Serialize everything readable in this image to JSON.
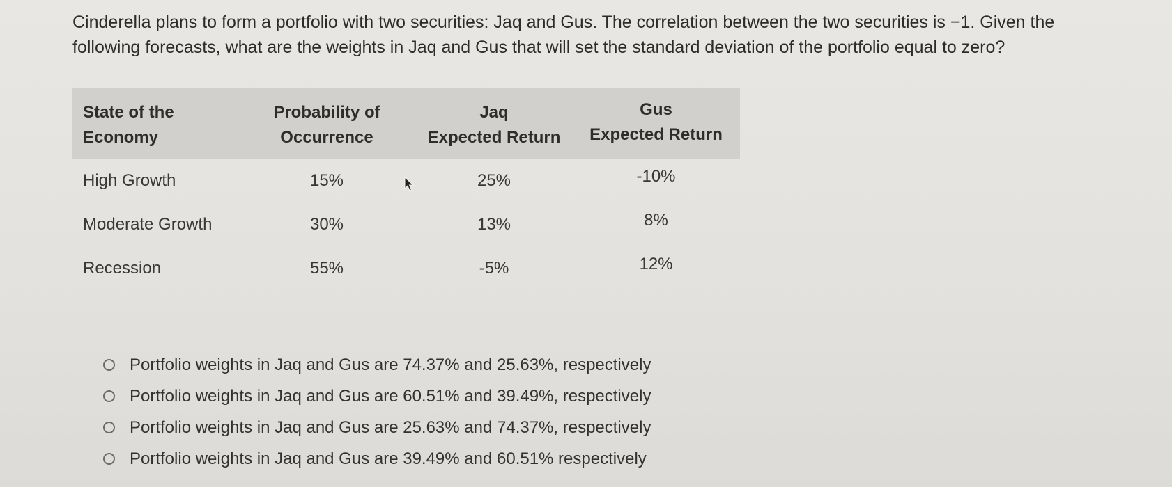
{
  "question": "Cinderella plans to form a portfolio with two securities: Jaq and Gus. The correlation between the two securities is −1. Given the following forecasts, what are the weights in Jaq and Gus that will set the standard deviation of the portfolio equal to zero?",
  "table": {
    "headers": {
      "state": [
        "State of the",
        "Economy"
      ],
      "probability": [
        "Probability of",
        "Occurrence"
      ],
      "jaq": [
        "Jaq",
        "Expected Return"
      ],
      "gus": [
        "Gus",
        "Expected Return"
      ]
    },
    "rows": [
      {
        "state": "High Growth",
        "probability": "15%",
        "jaq": "25%",
        "gus": "-10%"
      },
      {
        "state": "Moderate Growth",
        "probability": "30%",
        "jaq": "13%",
        "gus": "8%"
      },
      {
        "state": "Recession",
        "probability": "55%",
        "jaq": "-5%",
        "gus": "12%"
      }
    ]
  },
  "options": [
    "Portfolio weights in Jaq and Gus are 74.37% and 25.63%, respectively",
    "Portfolio weights in Jaq and Gus are 60.51% and 39.49%, respectively",
    "Portfolio weights in Jaq and Gus are 25.63% and 74.37%, respectively",
    "Portfolio weights in Jaq and Gus are 39.49% and 60.51% respectively"
  ],
  "icons": {
    "cursor": "mouse-pointer-icon",
    "radio": "radio-unselected-icon"
  }
}
